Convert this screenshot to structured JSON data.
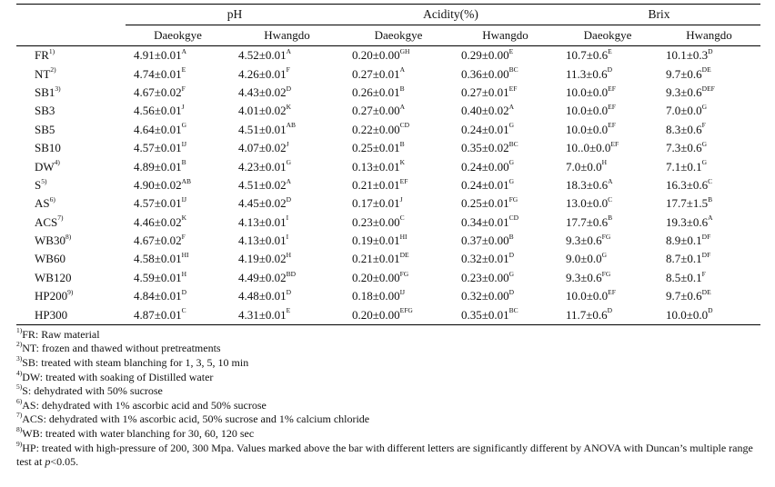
{
  "table": {
    "group_headers": [
      "pH",
      "Acidity(%)",
      "Brix"
    ],
    "sub_headers": [
      "Daeokgye",
      "Hwangdo",
      "Daeokgye",
      "Hwangdo",
      "Daeokgye",
      "Hwangdo"
    ],
    "rows": [
      {
        "label": "FR",
        "note": "1)",
        "cells": [
          [
            "4.91±0.01",
            "A"
          ],
          [
            "4.52±0.01",
            "A"
          ],
          [
            "0.20±0.00",
            "GH"
          ],
          [
            "0.29±0.00",
            "E"
          ],
          [
            "10.7±0.6",
            "E"
          ],
          [
            "10.1±0.3",
            "D"
          ]
        ]
      },
      {
        "label": "NT",
        "note": "2)",
        "cells": [
          [
            "4.74±0.01",
            "E"
          ],
          [
            "4.26±0.01",
            "F"
          ],
          [
            "0.27±0.01",
            "A"
          ],
          [
            "0.36±0.00",
            "BC"
          ],
          [
            "11.3±0.6",
            "D"
          ],
          [
            "9.7±0.6",
            "DE"
          ]
        ]
      },
      {
        "label": "SB1",
        "note": "3)",
        "cells": [
          [
            "4.67±0.02",
            "F"
          ],
          [
            "4.43±0.02",
            "D"
          ],
          [
            "0.26±0.01",
            "B"
          ],
          [
            "0.27±0.01",
            "EF"
          ],
          [
            "10.0±0.0",
            "EF"
          ],
          [
            "9.3±0.6",
            "DEF"
          ]
        ]
      },
      {
        "label": "SB3",
        "note": "",
        "cells": [
          [
            "4.56±0.01",
            "J"
          ],
          [
            "4.01±0.02",
            "K"
          ],
          [
            "0.27±0.00",
            "A"
          ],
          [
            "0.40±0.02",
            "A"
          ],
          [
            "10.0±0.0",
            "EF"
          ],
          [
            "7.0±0.0",
            "G"
          ]
        ]
      },
      {
        "label": "SB5",
        "note": "",
        "cells": [
          [
            "4.64±0.01",
            "G"
          ],
          [
            "4.51±0.01",
            "AB"
          ],
          [
            "0.22±0.00",
            "CD"
          ],
          [
            "0.24±0.01",
            "G"
          ],
          [
            "10.0±0.0",
            "EF"
          ],
          [
            "8.3±0.6",
            "F"
          ]
        ]
      },
      {
        "label": "SB10",
        "note": "",
        "cells": [
          [
            "4.57±0.01",
            "IJ"
          ],
          [
            "4.07±0.02",
            "J"
          ],
          [
            "0.25±0.01",
            "B"
          ],
          [
            "0.35±0.02",
            "BC"
          ],
          [
            "10..0±0.0",
            "EF"
          ],
          [
            "7.3±0.6",
            "G"
          ]
        ]
      },
      {
        "label": "DW",
        "note": "4)",
        "cells": [
          [
            "4.89±0.01",
            "B"
          ],
          [
            "4.23±0.01",
            "G"
          ],
          [
            "0.13±0.01",
            "K"
          ],
          [
            "0.24±0.00",
            "G"
          ],
          [
            "7.0±0.0",
            "H"
          ],
          [
            "7.1±0.1",
            "G"
          ]
        ]
      },
      {
        "label": "S",
        "note": "5)",
        "cells": [
          [
            "4.90±0.02",
            "AB"
          ],
          [
            "4.51±0.02",
            "A"
          ],
          [
            "0.21±0.01",
            "EF"
          ],
          [
            "0.24±0.01",
            "G"
          ],
          [
            "18.3±0.6",
            "A"
          ],
          [
            "16.3±0.6",
            "C"
          ]
        ]
      },
      {
        "label": "AS",
        "note": "6)",
        "cells": [
          [
            "4.57±0.01",
            "IJ"
          ],
          [
            "4.45±0.02",
            "D"
          ],
          [
            "0.17±0.01",
            "J"
          ],
          [
            "0.25±0.01",
            "FG"
          ],
          [
            "13.0±0.0",
            "C"
          ],
          [
            "17.7±1.5",
            "B"
          ]
        ]
      },
      {
        "label": "ACS",
        "note": "7)",
        "cells": [
          [
            "4.46±0.02",
            "K"
          ],
          [
            "4.13±0.01",
            "I"
          ],
          [
            "0.23±0.00",
            "C"
          ],
          [
            "0.34±0.01",
            "CD"
          ],
          [
            "17.7±0.6",
            "B"
          ],
          [
            "19.3±0.6",
            "A"
          ]
        ]
      },
      {
        "label": "WB30",
        "note": "8)",
        "cells": [
          [
            "4.67±0.02",
            "F"
          ],
          [
            "4.13±0.01",
            "I"
          ],
          [
            "0.19±0.01",
            "HI"
          ],
          [
            "0.37±0.00",
            "B"
          ],
          [
            "9.3±0.6",
            "FG"
          ],
          [
            "8.9±0.1",
            "DF"
          ]
        ]
      },
      {
        "label": "WB60",
        "note": "",
        "cells": [
          [
            "4.58±0.01",
            "HI"
          ],
          [
            "4.19±0.02",
            "H"
          ],
          [
            "0.21±0.01",
            "DE"
          ],
          [
            "0.32±0.01",
            "D"
          ],
          [
            "9.0±0.0",
            "G"
          ],
          [
            "8.7±0.1",
            "DF"
          ]
        ]
      },
      {
        "label": "WB120",
        "note": "",
        "cells": [
          [
            "4.59±0.01",
            "H"
          ],
          [
            "4.49±0.02",
            "BD"
          ],
          [
            "0.20±0.00",
            "FG"
          ],
          [
            "0.23±0.00",
            "G"
          ],
          [
            "9.3±0.6",
            "FG"
          ],
          [
            "8.5±0.1",
            "F"
          ]
        ]
      },
      {
        "label": "HP200",
        "note": "9)",
        "cells": [
          [
            "4.84±0.01",
            "D"
          ],
          [
            "4.48±0.01",
            "D"
          ],
          [
            "0.18±0.00",
            "IJ"
          ],
          [
            "0.32±0.00",
            "D"
          ],
          [
            "10.0±0.0",
            "EF"
          ],
          [
            "9.7±0.6",
            "DE"
          ]
        ]
      },
      {
        "label": "HP300",
        "note": "",
        "cells": [
          [
            "4.87±0.01",
            "C"
          ],
          [
            "4.31±0.01",
            "E"
          ],
          [
            "0.20±0.00",
            "EFG"
          ],
          [
            "0.35±0.01",
            "BC"
          ],
          [
            "11.7±0.6",
            "D"
          ],
          [
            "10.0±0.0",
            "D"
          ]
        ]
      }
    ]
  },
  "footnotes": [
    {
      "mark": "1)",
      "text": "FR: Raw material"
    },
    {
      "mark": "2)",
      "text": "NT: frozen and thawed without pretreatments"
    },
    {
      "mark": "3)",
      "text": "SB: treated with steam blanching for 1, 3, 5, 10 min"
    },
    {
      "mark": "4)",
      "text": "DW: treated with soaking of Distilled water"
    },
    {
      "mark": "5)",
      "text": "S: dehydrated with 50% sucrose"
    },
    {
      "mark": "6)",
      "text": "AS: dehydrated with 1% ascorbic acid and 50% sucrose"
    },
    {
      "mark": "7)",
      "text": "ACS: dehydrated with 1% ascorbic acid, 50% sucrose and 1% calcium chloride"
    },
    {
      "mark": "8)",
      "text": "WB: treated with water blanching for 30, 60, 120 sec"
    },
    {
      "mark": "9)",
      "text": "HP: treated with high-pressure of 200, 300 Mpa. Values marked above the bar with different letters are significantly different by ANOVA with Duncan’s multiple range test at ",
      "italic": "p",
      "tail": "<0.05."
    }
  ]
}
